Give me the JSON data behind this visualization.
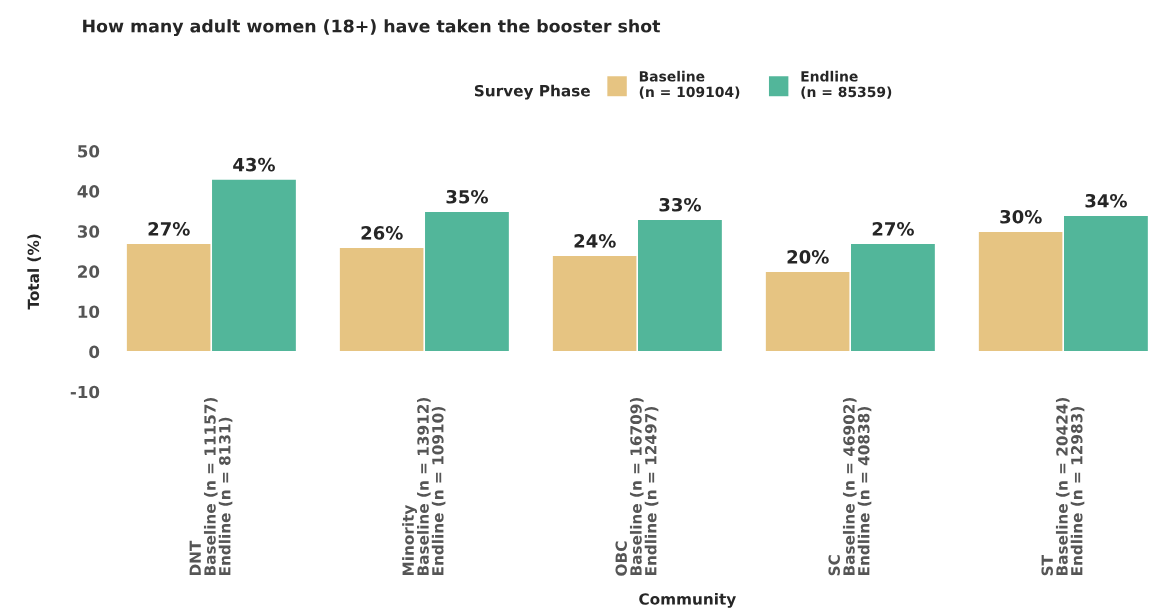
{
  "chart_data": {
    "type": "bar",
    "title": "How many adult women (18+) have taken the booster shot",
    "xlabel": "Community",
    "ylabel": "Total (%)",
    "legend_title": "Survey Phase",
    "categories": [
      "DNT\nBaseline (n = 11157)\nEndline (n = 8131)",
      "Minority\nBaseline (n = 13912)\nEndline (n = 10910)",
      "OBC\nBaseline (n = 16709)\nEndline (n = 12497)",
      "SC\nBaseline (n = 46902)\nEndline (n = 40838)",
      "ST\nBaseline (n = 20424)\nEndline (n = 12983)"
    ],
    "series": [
      {
        "name": "Baseline\n(n = 109104)",
        "color": "#e6c482",
        "values": [
          27,
          26,
          24,
          20,
          30
        ],
        "value_labels": [
          "27%",
          "26%",
          "24%",
          "20%",
          "30%"
        ]
      },
      {
        "name": "Endline\n(n = 85359)",
        "color": "#52b69a",
        "values": [
          43,
          35,
          33,
          27,
          34
        ],
        "value_labels": [
          "43%",
          "35%",
          "33%",
          "27%",
          "34%"
        ]
      }
    ],
    "ylim": [
      -10,
      50
    ],
    "yticks": [
      -10,
      0,
      10,
      20,
      30,
      40,
      50
    ],
    "grid": false,
    "legend": "top"
  }
}
